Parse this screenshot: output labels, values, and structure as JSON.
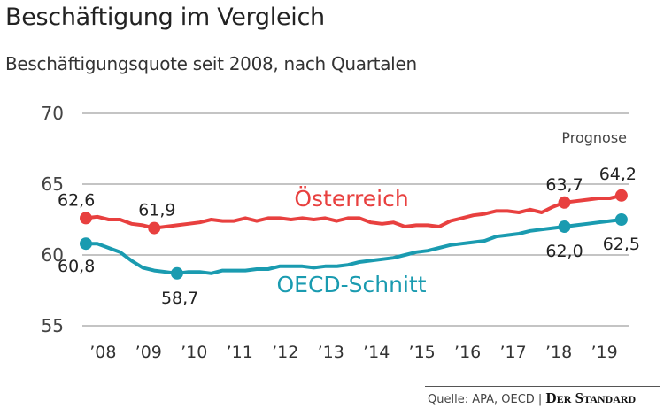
{
  "chart_data": {
    "type": "line",
    "title": "Beschäftigung im Vergleich",
    "subtitle": "Beschäftigungsquote seit 2008, nach Quartalen",
    "annotation": "Prognose",
    "ylim": [
      55,
      70
    ],
    "yticks": [
      "70",
      "65",
      "60",
      "55"
    ],
    "ytick_values": [
      70,
      65,
      60,
      55
    ],
    "xtick_labels": [
      "’08",
      "’09",
      "’10",
      "’11",
      "’12",
      "’13",
      "’14",
      "’15",
      "’16",
      "’17",
      "’18",
      "’19"
    ],
    "x_start": "2008 Q1",
    "x_end": "2019 Q4",
    "grid": true,
    "series": [
      {
        "name": "Österreich",
        "color": "#e8403f",
        "values": [
          62.6,
          62.7,
          62.5,
          62.5,
          62.2,
          62.1,
          61.9,
          62.0,
          62.1,
          62.2,
          62.3,
          62.5,
          62.4,
          62.4,
          62.6,
          62.4,
          62.6,
          62.6,
          62.5,
          62.6,
          62.5,
          62.6,
          62.4,
          62.6,
          62.6,
          62.3,
          62.2,
          62.3,
          62.0,
          62.1,
          62.1,
          62.0,
          62.4,
          62.6,
          62.8,
          62.9,
          63.1,
          63.1,
          63.0,
          63.2,
          63.0,
          63.4,
          63.7,
          63.8,
          63.9,
          64.0,
          64.0,
          64.2
        ],
        "labeled_points": [
          {
            "index": 0,
            "label": "62,6"
          },
          {
            "index": 6,
            "label": "61,9"
          },
          {
            "index": 42,
            "label": "63,7"
          },
          {
            "index": 47,
            "label": "64,2"
          }
        ]
      },
      {
        "name": "OECD-Schnitt",
        "color": "#1a9bb0",
        "values": [
          60.8,
          60.8,
          60.5,
          60.2,
          59.6,
          59.1,
          58.9,
          58.8,
          58.7,
          58.8,
          58.8,
          58.7,
          58.9,
          58.9,
          58.9,
          59.0,
          59.0,
          59.2,
          59.2,
          59.2,
          59.1,
          59.2,
          59.2,
          59.3,
          59.5,
          59.6,
          59.7,
          59.8,
          60.0,
          60.2,
          60.3,
          60.5,
          60.7,
          60.8,
          60.9,
          61.0,
          61.3,
          61.4,
          61.5,
          61.7,
          61.8,
          61.9,
          62.0,
          62.1,
          62.2,
          62.3,
          62.4,
          62.5
        ],
        "labeled_points": [
          {
            "index": 0,
            "label": "60,8"
          },
          {
            "index": 8,
            "label": "58,7"
          },
          {
            "index": 42,
            "label": "62,0"
          },
          {
            "index": 47,
            "label": "62,5"
          }
        ]
      }
    ]
  },
  "footer": {
    "source": "Quelle: APA, OECD |",
    "brand": "Der Standard"
  }
}
